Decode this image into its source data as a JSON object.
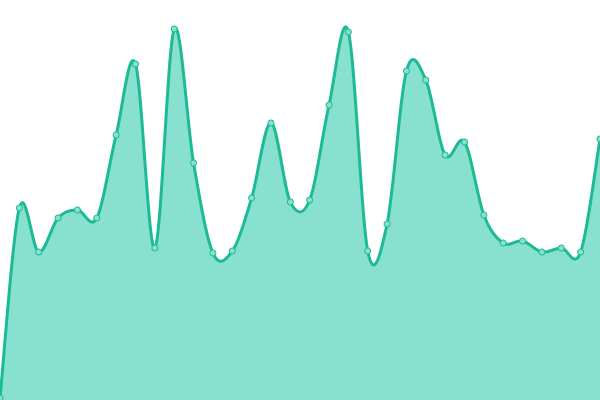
{
  "chart_data": {
    "type": "area",
    "values": [
      2,
      192,
      148,
      182,
      190,
      182,
      265,
      336,
      152,
      371,
      237,
      147,
      149,
      202,
      277,
      198,
      200,
      295,
      368,
      149,
      176,
      329,
      320,
      245,
      258,
      185,
      157,
      159,
      148,
      152,
      148,
      261
    ],
    "ylim": [
      0,
      400
    ],
    "color": "#1dba96",
    "fill": "#88e0ce"
  }
}
